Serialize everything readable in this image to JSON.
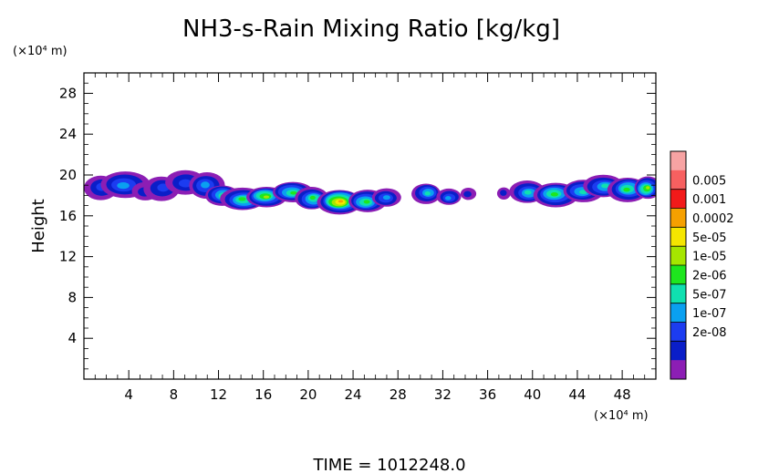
{
  "chart_data": {
    "type": "heatmap",
    "title": "NH3-s-Rain Mixing Ratio [kg/kg]",
    "ylabel": "Height",
    "xlabel": "",
    "x_unit_label": "(×10⁴ m)",
    "y_unit_label": "(×10⁴ m)",
    "xlim": [
      0,
      51
    ],
    "ylim": [
      0,
      30
    ],
    "x_ticks": [
      4,
      8,
      12,
      16,
      20,
      24,
      28,
      32,
      36,
      40,
      44,
      48
    ],
    "y_ticks": [
      4,
      8,
      12,
      16,
      20,
      24,
      28
    ],
    "x_tick_labels": [
      "4",
      "8",
      "12",
      "16",
      "20",
      "24",
      "28",
      "32",
      "36",
      "40",
      "44",
      "48"
    ],
    "y_tick_labels": [
      "4",
      "8",
      "12",
      "16",
      "20",
      "24",
      "28"
    ],
    "colorbar": {
      "levels": [
        {
          "label": "",
          "color": "#f7a3a3"
        },
        {
          "label": "0.005",
          "color": "#f76060"
        },
        {
          "label": "0.001",
          "color": "#f21a1a"
        },
        {
          "label": "0.0002",
          "color": "#f5a000"
        },
        {
          "label": "5e-05",
          "color": "#f5e600"
        },
        {
          "label": "1e-05",
          "color": "#a6e600"
        },
        {
          "label": "2e-06",
          "color": "#1ee61e"
        },
        {
          "label": "5e-07",
          "color": "#10e0b0"
        },
        {
          "label": "1e-07",
          "color": "#0aa0f0"
        },
        {
          "label": "2e-08",
          "color": "#1c3cf0"
        },
        {
          "label": "",
          "color": "#0a1ec8"
        },
        {
          "label": "",
          "color": "#8c1eb4"
        }
      ]
    },
    "field": {
      "description_levels": "0=lowest (purple) ... 11=highest (pink)",
      "blobs": [
        {
          "x": 1.5,
          "y": 18.8,
          "w": 1.5,
          "h": 1.2,
          "peak": 2
        },
        {
          "x": 3.6,
          "y": 19.0,
          "w": 2.2,
          "h": 1.3,
          "peak": 3
        },
        {
          "x": 5.5,
          "y": 18.4,
          "w": 1.2,
          "h": 0.9,
          "peak": 1
        },
        {
          "x": 7.0,
          "y": 18.7,
          "w": 1.6,
          "h": 1.2,
          "peak": 2
        },
        {
          "x": 9.0,
          "y": 19.2,
          "w": 1.8,
          "h": 1.2,
          "peak": 2
        },
        {
          "x": 10.9,
          "y": 19.0,
          "w": 1.6,
          "h": 1.3,
          "peak": 3
        },
        {
          "x": 12.4,
          "y": 18.0,
          "w": 1.5,
          "h": 1.0,
          "peak": 5
        },
        {
          "x": 14.2,
          "y": 17.6,
          "w": 2.0,
          "h": 1.1,
          "peak": 5
        },
        {
          "x": 16.2,
          "y": 17.9,
          "w": 1.8,
          "h": 1.0,
          "peak": 6
        },
        {
          "x": 18.6,
          "y": 18.3,
          "w": 1.8,
          "h": 1.0,
          "peak": 5
        },
        {
          "x": 20.4,
          "y": 17.7,
          "w": 1.5,
          "h": 1.1,
          "peak": 5
        },
        {
          "x": 22.8,
          "y": 17.4,
          "w": 2.0,
          "h": 1.2,
          "peak": 8
        },
        {
          "x": 25.2,
          "y": 17.4,
          "w": 1.7,
          "h": 1.1,
          "peak": 5
        },
        {
          "x": 27.0,
          "y": 17.8,
          "w": 1.3,
          "h": 0.9,
          "peak": 3
        },
        {
          "x": 30.6,
          "y": 18.2,
          "w": 1.3,
          "h": 1.0,
          "peak": 4
        },
        {
          "x": 32.5,
          "y": 17.8,
          "w": 1.1,
          "h": 0.8,
          "peak": 3
        },
        {
          "x": 34.2,
          "y": 18.2,
          "w": 0.7,
          "h": 0.6,
          "peak": 1
        },
        {
          "x": 37.5,
          "y": 18.2,
          "w": 0.6,
          "h": 0.6,
          "peak": 1
        },
        {
          "x": 39.6,
          "y": 18.3,
          "w": 1.6,
          "h": 1.1,
          "peak": 4
        },
        {
          "x": 42.0,
          "y": 18.1,
          "w": 2.0,
          "h": 1.2,
          "peak": 5
        },
        {
          "x": 44.5,
          "y": 18.4,
          "w": 1.8,
          "h": 1.1,
          "peak": 4
        },
        {
          "x": 46.4,
          "y": 18.9,
          "w": 1.8,
          "h": 1.1,
          "peak": 4
        },
        {
          "x": 48.5,
          "y": 18.6,
          "w": 1.8,
          "h": 1.2,
          "peak": 5
        },
        {
          "x": 50.2,
          "y": 18.7,
          "w": 1.2,
          "h": 1.1,
          "peak": 6
        }
      ]
    }
  },
  "footer": {
    "time_label": "TIME  =  1012248.0"
  }
}
